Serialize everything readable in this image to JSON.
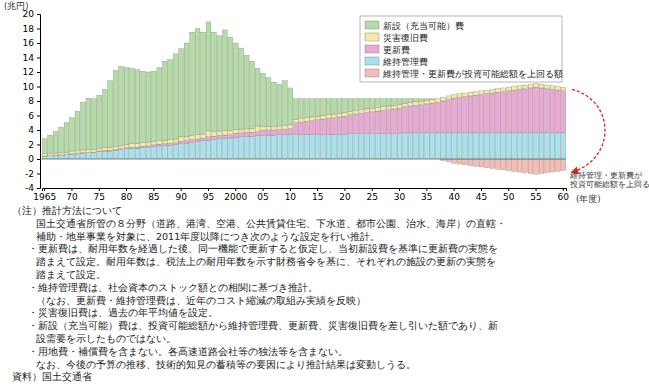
{
  "chart_data": {
    "type": "bar",
    "stacked": true,
    "grid": false,
    "legend": "top-right",
    "y_label": "(兆円)",
    "x_label": "(年度)",
    "annotation": [
      "維持管理・更新費が",
      "投資可能総額を上回る"
    ],
    "categories": [
      "1965",
      null,
      null,
      null,
      null,
      "70",
      null,
      null,
      null,
      null,
      "75",
      null,
      null,
      null,
      null,
      "80",
      null,
      null,
      null,
      null,
      "85",
      null,
      null,
      null,
      null,
      "90",
      null,
      null,
      null,
      null,
      "95",
      null,
      null,
      null,
      null,
      "2000",
      null,
      null,
      null,
      null,
      "05",
      null,
      null,
      null,
      null,
      "10",
      null,
      null,
      null,
      null,
      "15",
      null,
      null,
      null,
      null,
      "20",
      null,
      null,
      null,
      null,
      "25",
      null,
      null,
      null,
      null,
      "30",
      null,
      null,
      null,
      null,
      "35",
      null,
      null,
      null,
      null,
      "40",
      null,
      null,
      null,
      null,
      "45",
      null,
      null,
      null,
      null,
      "50",
      null,
      null,
      null,
      null,
      "55",
      null,
      null,
      null,
      null,
      "60"
    ],
    "ylim": [
      -4,
      20
    ],
    "yticks": [
      -4,
      -2,
      0,
      2,
      4,
      6,
      8,
      10,
      12,
      14,
      16,
      18,
      20
    ],
    "series": [
      {
        "name": "新設（充当可能）費",
        "color": "#b5dca6",
        "values": [
          2.08,
          2.53,
          2.98,
          3.53,
          4.08,
          4.6,
          5.45,
          6.55,
          7.1,
          6.95,
          7.3,
          8.05,
          9.2,
          10.5,
          11.0,
          10.55,
          10.4,
          10.15,
          9.85,
          9.7,
          9.65,
          10.05,
          10.9,
          11.05,
          11.75,
          12.15,
          12.85,
          14.25,
          14.65,
          14.05,
          14.95,
          13.75,
          13.15,
          13.9,
          12.85,
          11.95,
          11.2,
          10.15,
          9.3,
          7.95,
          7.35,
          6.7,
          6.1,
          5.75,
          6.2,
          5.1,
          2.8,
          2.7,
          2.6,
          2.5,
          2.4,
          2.3,
          2.2,
          2.1,
          2.0,
          1.9,
          1.7,
          1.6,
          1.5,
          1.4,
          1.3,
          1.2,
          1.1,
          1.0,
          0.9,
          0.8,
          0.6,
          0.5,
          0.4,
          0.3,
          0.2,
          0.1,
          0,
          0,
          0,
          0,
          0,
          0,
          0,
          0,
          0,
          0,
          0,
          0,
          0,
          0,
          0,
          0,
          0,
          0,
          0,
          0,
          0,
          0,
          0,
          0
        ]
      },
      {
        "name": "災害復旧費",
        "color": "#f3eaa6",
        "values": [
          0.3,
          0.3,
          0.3,
          0.3,
          0.3,
          0.4,
          0.4,
          0.4,
          0.4,
          0.4,
          0.4,
          0.4,
          0.4,
          0.4,
          0.4,
          0.5,
          0.5,
          0.5,
          0.5,
          0.5,
          0.5,
          0.5,
          0.5,
          0.5,
          0.5,
          0.6,
          0.6,
          0.6,
          0.6,
          0.6,
          0.9,
          0.6,
          0.6,
          0.6,
          0.6,
          0.5,
          0.5,
          0.5,
          0.5,
          0.8,
          0.5,
          0.5,
          0.5,
          0.5,
          0.5,
          0.5,
          0.5,
          0.5,
          0.5,
          0.5,
          0.5,
          0.5,
          0.5,
          0.5,
          0.5,
          0.5,
          0.5,
          0.5,
          0.5,
          0.5,
          0.5,
          0.5,
          0.5,
          0.5,
          0.5,
          0.5,
          0.5,
          0.5,
          0.5,
          0.5,
          0.5,
          0.5,
          0.5,
          0.5,
          0.5,
          0.5,
          0.5,
          0.5,
          0.5,
          0.5,
          0.5,
          0.5,
          0.5,
          0.5,
          0.5,
          0.5,
          0.5,
          0.5,
          0.5,
          0.5,
          0.5,
          0.5,
          0.5,
          0.5,
          0.5,
          0.5
        ]
      },
      {
        "name": "更新費",
        "color": "#e9a9d3",
        "values": [
          0.02,
          0.02,
          0.02,
          0.02,
          0.02,
          0.05,
          0.05,
          0.05,
          0.05,
          0.05,
          0.1,
          0.1,
          0.1,
          0.1,
          0.1,
          0.15,
          0.15,
          0.15,
          0.15,
          0.15,
          0.25,
          0.25,
          0.25,
          0.25,
          0.25,
          0.35,
          0.35,
          0.35,
          0.35,
          0.35,
          0.45,
          0.45,
          0.45,
          0.45,
          0.45,
          0.55,
          0.55,
          0.55,
          0.55,
          0.55,
          0.7,
          0.7,
          0.7,
          0.7,
          0.7,
          0.8,
          1.6,
          1.7,
          1.8,
          1.9,
          2.0,
          2.1,
          2.2,
          2.3,
          2.4,
          2.5,
          2.6,
          2.7,
          2.8,
          2.9,
          3.0,
          3.1,
          3.2,
          3.3,
          3.4,
          3.5,
          3.6,
          3.7,
          3.8,
          3.9,
          4.0,
          4.1,
          4.2,
          4.4,
          4.6,
          4.8,
          4.9,
          5.0,
          5.1,
          5.2,
          5.3,
          5.4,
          5.5,
          5.6,
          5.7,
          5.8,
          5.9,
          6.0,
          6.1,
          6.2,
          6.3,
          6.2,
          6.1,
          6.0,
          5.9,
          5.8
        ]
      },
      {
        "name": "維持管理費",
        "color": "#a9e1ec",
        "values": [
          0.4,
          0.45,
          0.5,
          0.55,
          0.6,
          0.65,
          0.7,
          0.8,
          0.85,
          0.9,
          1.0,
          1.05,
          1.1,
          1.2,
          1.3,
          1.4,
          1.45,
          1.5,
          1.6,
          1.65,
          1.7,
          1.8,
          1.85,
          1.9,
          2.0,
          2.1,
          2.2,
          2.3,
          2.4,
          2.5,
          2.6,
          2.7,
          2.8,
          2.85,
          2.9,
          3.0,
          3.05,
          3.1,
          3.15,
          3.2,
          3.25,
          3.3,
          3.3,
          3.35,
          3.4,
          3.4,
          3.4,
          3.4,
          3.4,
          3.4,
          3.4,
          3.4,
          3.4,
          3.4,
          3.4,
          3.4,
          3.5,
          3.5,
          3.5,
          3.5,
          3.5,
          3.5,
          3.5,
          3.5,
          3.5,
          3.5,
          3.6,
          3.6,
          3.6,
          3.6,
          3.6,
          3.6,
          3.6,
          3.6,
          3.6,
          3.6,
          3.6,
          3.6,
          3.6,
          3.6,
          3.6,
          3.6,
          3.6,
          3.6,
          3.6,
          3.6,
          3.6,
          3.6,
          3.6,
          3.6,
          3.6,
          3.6,
          3.6,
          3.6,
          3.6,
          3.6
        ]
      },
      {
        "name": "維持管理・更新費が投資可能総額を上回る額",
        "color": "#f6bdb4",
        "values": [
          0,
          0,
          0,
          0,
          0,
          0,
          0,
          0,
          0,
          0,
          0,
          0,
          0,
          0,
          0,
          0,
          0,
          0,
          0,
          0,
          0,
          0,
          0,
          0,
          0,
          0,
          0,
          0,
          0,
          0,
          0,
          0,
          0,
          0,
          0,
          0,
          0,
          0,
          0,
          0,
          0,
          0,
          0,
          0,
          0,
          0,
          0,
          0,
          0,
          0,
          0,
          0,
          0,
          0,
          0,
          0,
          0,
          0,
          0,
          0,
          0,
          0,
          0,
          0,
          0,
          0,
          0,
          0,
          0,
          0,
          0,
          0,
          0,
          -0.2,
          -0.4,
          -0.6,
          -0.7,
          -0.8,
          -0.9,
          -1.0,
          -1.1,
          -1.2,
          -1.3,
          -1.4,
          -1.5,
          -1.6,
          -1.7,
          -1.8,
          -1.9,
          -2.0,
          -2.1,
          -2.0,
          -1.9,
          -1.8,
          -1.7,
          -1.6
        ]
      }
    ],
    "notes": [
      "（注）推計方法について",
      "国土交通省所管の８分野（道路、港湾、空港、公共賃貸住宅、下水道、都市公園、治水、海岸）の直轄・",
      "補助・地単事業を対象に、2011年度以降につき次のような設定を行い推計。",
      "・更新費は、耐用年数を経過した後、同一機能で更新すると仮定し、当初新設費を基準に更新費の実態を",
      "踏まえて設定。耐用年数は、税法上の耐用年数を示す財務省令を基に、それぞれの施設の更新の実態を",
      "踏まえて設定。",
      "・維持管理費は、社会資本のストック額との相関に基づき推計。",
      "（なお、更新費・維持管理費は、近年のコスト縮減の取組み実績を反映）",
      "・災害復旧費は、過去の年平均値を設定。",
      "・新設（充当可能）費は、投資可能総額から維持管理費、更新費、災害復旧費を差し引いた額であり、新",
      "設需要を示したものではない。",
      "・用地費・補償費を含まない。各高速道路会社等の独法等を含まない。",
      "なお、今後の予算の推移、技術的知見の蓄積等の要因により推計結果は変動しうる。",
      "資料）国土交通省"
    ]
  }
}
